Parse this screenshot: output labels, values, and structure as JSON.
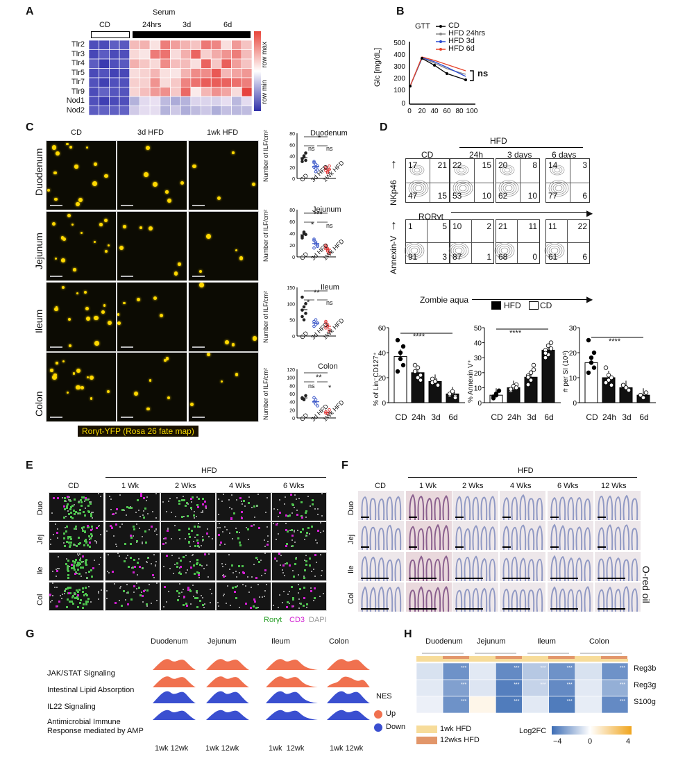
{
  "panels": {
    "A": "A",
    "B": "B",
    "C": "C",
    "D": "D",
    "E": "E",
    "F": "F",
    "G": "G",
    "H": "H"
  },
  "panelA": {
    "cd_label": "CD",
    "serum_label": "Serum",
    "time_labels": [
      "24hrs",
      "3d",
      "6d"
    ],
    "genes": [
      "Tlr2",
      "Tlr3",
      "Tlr4",
      "Tlr5",
      "Tlr7",
      "Tlr9",
      "Nod1",
      "Nod2"
    ],
    "scale_max": "row max",
    "scale_min": "row min",
    "colors": {
      "high": "#e8463b",
      "mid": "#ffffff",
      "low": "#2f2fa8"
    }
  },
  "panelB": {
    "title": "GTT",
    "ylabel": "Glc [mg/dL]",
    "ns": "ns",
    "legend": [
      "CD",
      "HFD 24hrs",
      "HFD 3d",
      "HFD 6d"
    ]
  },
  "panelC": {
    "cols": [
      "CD",
      "3d HFD",
      "1wk HFD"
    ],
    "rows": [
      "Duodenum",
      "Jejunum",
      "Ileum",
      "Colon"
    ],
    "caption": "Rorγt-YFP (Rosa 26 fate map)",
    "ylabel": "Number of ILF/cm²",
    "xcats": [
      "CD",
      "3d HFD",
      "1Wk HFD"
    ],
    "xcats_alt": [
      "CD",
      "3d HFD",
      "1wk HFD"
    ],
    "sig": {
      "duo": [
        "*",
        "ns",
        "ns"
      ],
      "jej": [
        "***",
        "*",
        "ns"
      ],
      "ile": [
        "**",
        "*",
        "ns"
      ],
      "col": [
        "**",
        "ns",
        "*"
      ]
    }
  },
  "panelD": {
    "hfd": "HFD",
    "cols": [
      "CD",
      "24h",
      "3 days",
      "6 days"
    ],
    "row1_y": "NKp46",
    "row1_x": "RORγt",
    "row2_y": "Annexin-V",
    "row2_x": "Zombie aqua",
    "row1_q": [
      [
        "17",
        "21",
        "47",
        "15"
      ],
      [
        "22",
        "15",
        "53",
        "10"
      ],
      [
        "20",
        "8",
        "62",
        "10"
      ],
      [
        "14",
        "3",
        "77",
        "6"
      ]
    ],
    "row2_q": [
      [
        "1",
        "5",
        "91",
        "3"
      ],
      [
        "10",
        "2",
        "87",
        "1"
      ],
      [
        "21",
        "11",
        "68",
        "0"
      ],
      [
        "11",
        "22",
        "61",
        "6"
      ]
    ],
    "legend_hfd": "HFD",
    "legend_cd": "CD",
    "sig": "****",
    "xcats": [
      "CD",
      "24h",
      "3d",
      "6d"
    ]
  },
  "panelE": {
    "hfd": "HFD",
    "cols": [
      "CD",
      "1 Wk",
      "2 Wks",
      "4 Wks",
      "6 Wks"
    ],
    "rows": [
      "Duo",
      "Jej",
      "Ile",
      "Col"
    ],
    "stain_rorgt": "Rorγt",
    "stain_cd3": "CD3",
    "stain_dapi": "DAPI"
  },
  "panelF": {
    "hfd": "HFD",
    "cols": [
      "CD",
      "1 Wk",
      "2 Wks",
      "4 Wks",
      "6 Wks",
      "12 Wks"
    ],
    "rows": [
      "Duo",
      "Jej",
      "Ile",
      "Col"
    ],
    "stain": "O-red oil"
  },
  "panelG": {
    "tissues": [
      "Duodenum",
      "Jejunum",
      "Ileum",
      "Colon"
    ],
    "pathways": [
      "JAK/STAT Signaling",
      "Intestinal Lipid Absorption",
      "IL22 Signaling",
      "Antimicrobial Immune",
      "Response mediated by AMP"
    ],
    "nes": "NES",
    "up": "Up",
    "down": "Down",
    "xlab": [
      "1wk 12wk",
      "1wk 12wk",
      "1wk  12wk",
      "1wk 12wk"
    ],
    "colors": {
      "up": "#f0714f",
      "down": "#3a4fd0"
    }
  },
  "panelH": {
    "tissues": [
      "Duodenum",
      "Jejunum",
      "Ileum",
      "Colon"
    ],
    "genes": [
      "Reg3b",
      "Reg3g",
      "S100g"
    ],
    "legend_1wk": "1wk HFD",
    "legend_12wk": "12wks HFD",
    "scale_label": "Log2FC",
    "scale_ticks": [
      "−4",
      "0",
      "4"
    ],
    "colors": {
      "wk1": "#f7dc9a",
      "wk12": "#e2966a",
      "neg": "#3d6db5",
      "pos": "#f0a51e"
    }
  }
}
